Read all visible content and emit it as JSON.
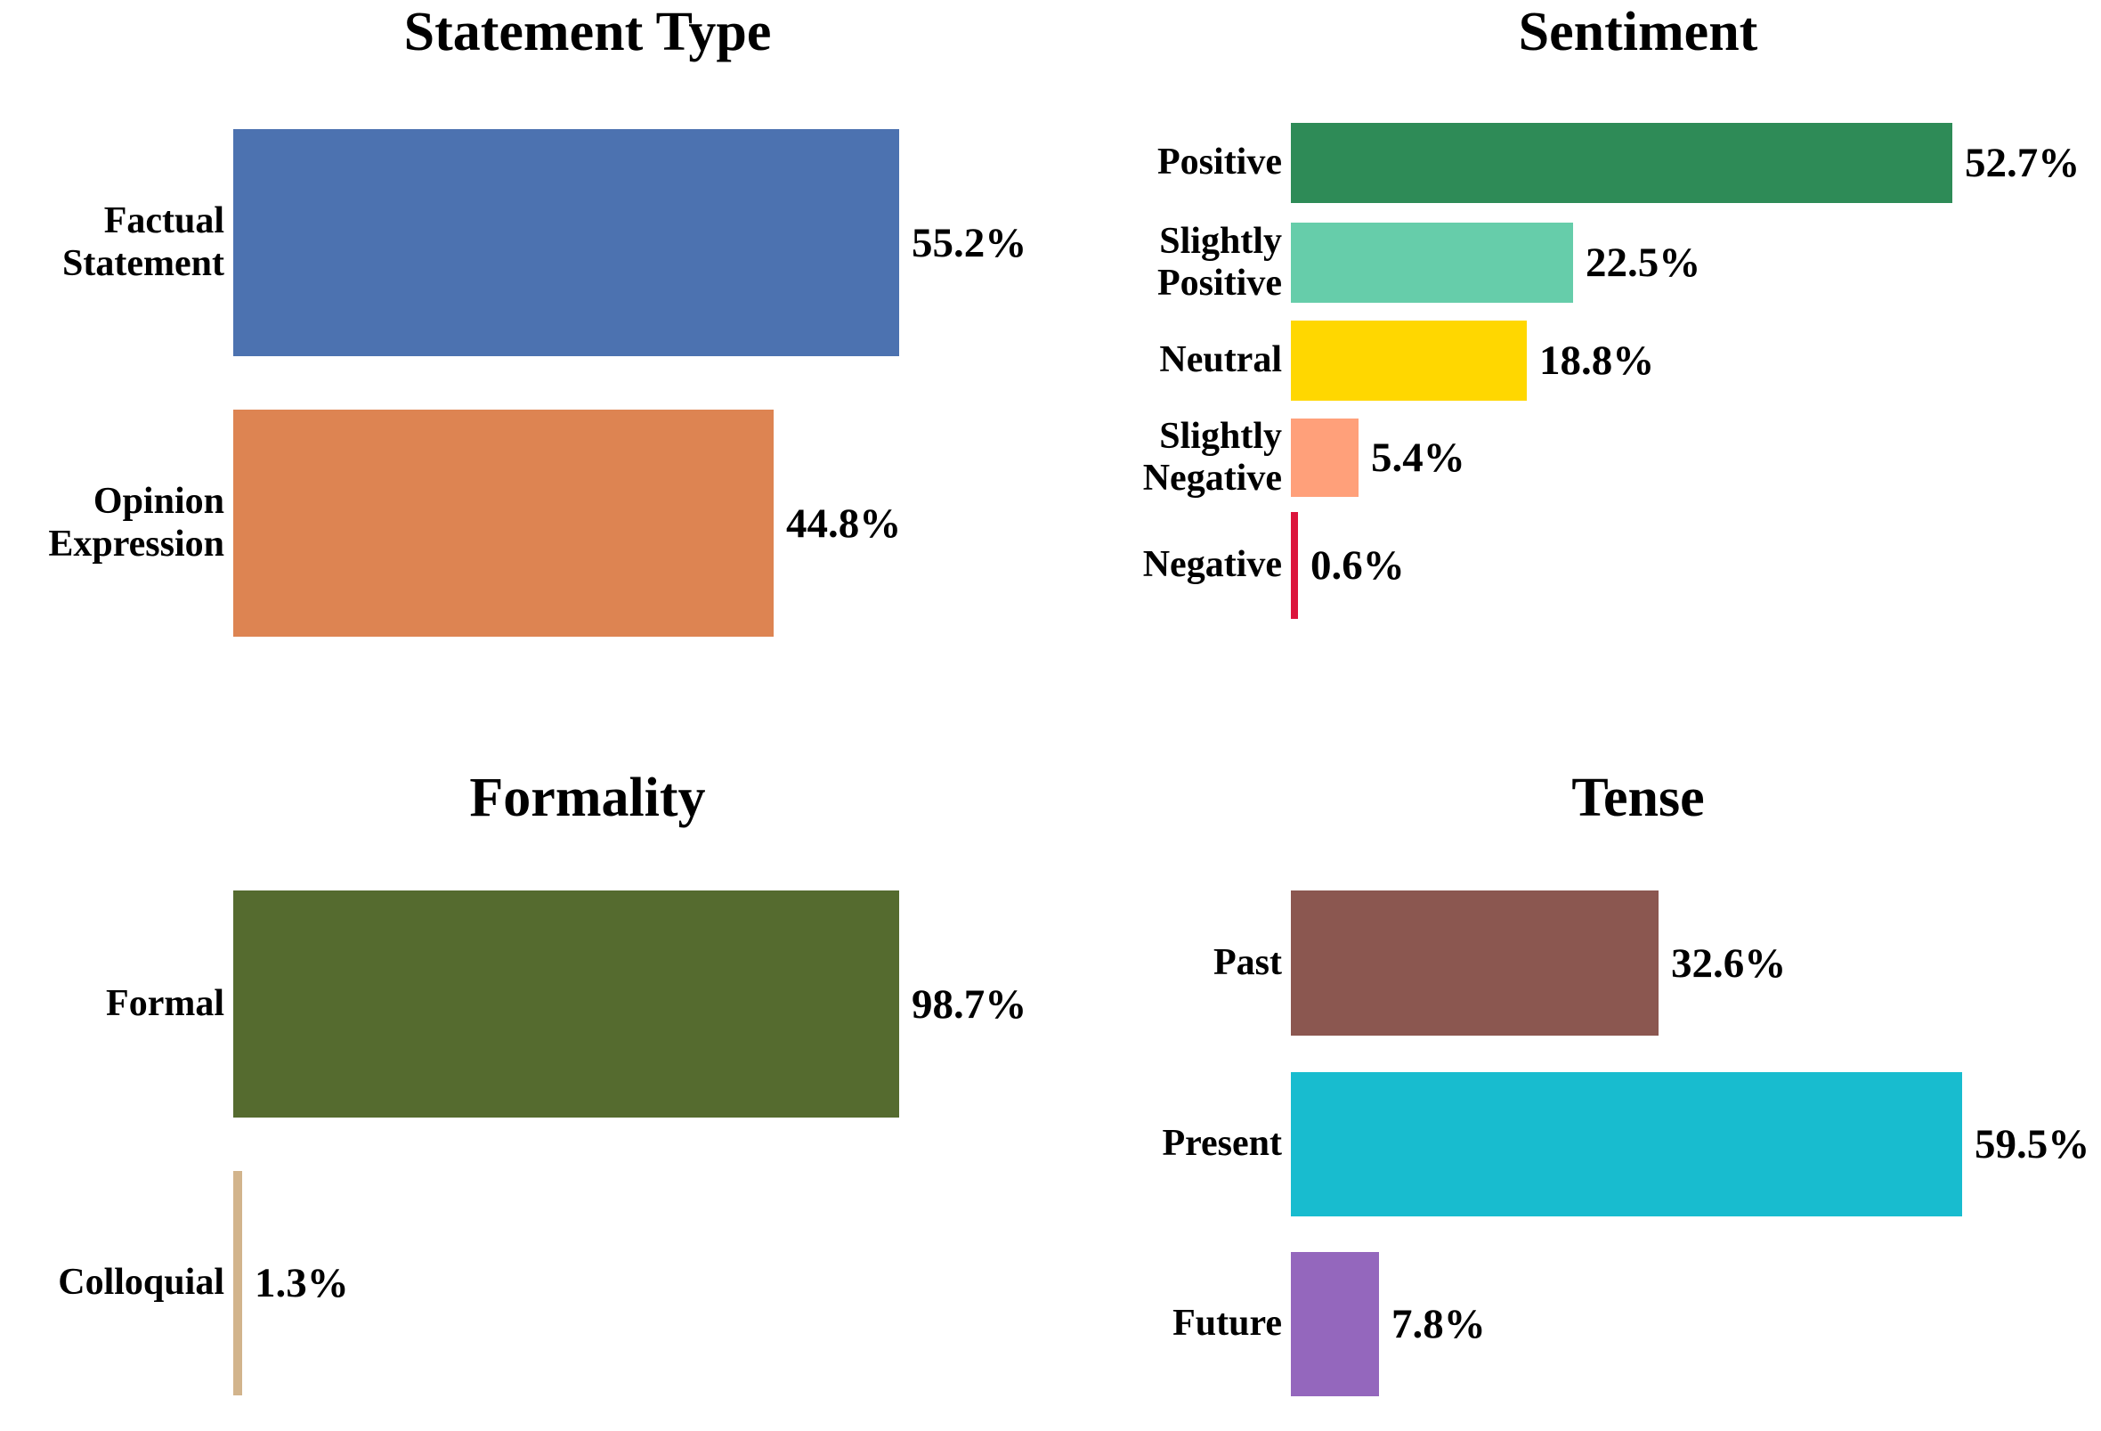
{
  "page": {
    "background_color": "#ffffff",
    "text_color": "#000000"
  },
  "chart_data": [
    {
      "type": "bar",
      "orientation": "horizontal",
      "title": "Statement Type",
      "categories": [
        "Factual\nStatement",
        "Opinion\nExpression"
      ],
      "values": [
        55.2,
        44.8
      ],
      "value_labels": [
        "55.2%",
        "44.8%"
      ],
      "colors": [
        "#4C72B0",
        "#DD8452"
      ],
      "xlim": [
        0,
        58.3
      ],
      "grid": false,
      "legend": "none",
      "value_label_position": "right-of-bar"
    },
    {
      "type": "bar",
      "orientation": "horizontal",
      "title": "Sentiment",
      "categories": [
        "Positive",
        "Slightly\nPositive",
        "Neutral",
        "Slightly\nNegative",
        "Negative"
      ],
      "values": [
        52.7,
        22.5,
        18.8,
        5.4,
        0.6
      ],
      "value_labels": [
        "52.7%",
        "22.5%",
        "18.8%",
        "5.4%",
        "0.6%"
      ],
      "colors": [
        "#2E8B57",
        "#66CDAA",
        "#FFD700",
        "#FFA07A",
        "#DC143C"
      ],
      "xlim": [
        0,
        55.8
      ],
      "grid": false,
      "legend": "none",
      "value_label_position": "right-of-bar"
    },
    {
      "type": "bar",
      "orientation": "horizontal",
      "title": "Formality",
      "categories": [
        "Formal",
        "Colloquial"
      ],
      "values": [
        98.7,
        1.3
      ],
      "value_labels": [
        "98.7%",
        "1.3%"
      ],
      "colors": [
        "#556B2F",
        "#D2B48C"
      ],
      "xlim": [
        0,
        104.2
      ],
      "grid": false,
      "legend": "none",
      "value_label_position": "right-of-bar"
    },
    {
      "type": "bar",
      "orientation": "horizontal",
      "title": "Tense",
      "categories": [
        "Past",
        "Present",
        "Future"
      ],
      "values": [
        32.6,
        59.5,
        7.8
      ],
      "value_labels": [
        "32.6%",
        "59.5%",
        "7.8%"
      ],
      "colors": [
        "#8B5750",
        "#18BCCF",
        "#9467BD"
      ],
      "xlim": [
        0,
        66.0
      ],
      "grid": false,
      "legend": "none",
      "value_label_position": "right-of-bar"
    }
  ]
}
